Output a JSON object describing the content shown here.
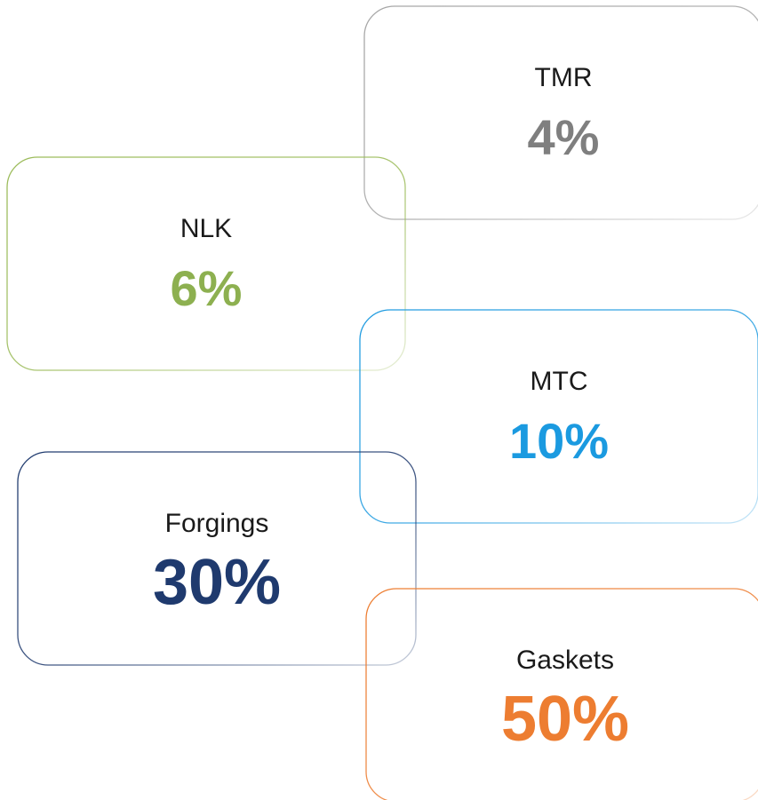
{
  "nodes": [
    {
      "label": "TMR",
      "value": "4%",
      "color": "#a6a6a6",
      "text_color": "#7f7f7f"
    },
    {
      "label": "NLK",
      "value": "6%",
      "color": "#9bbb59",
      "text_color": "#8db050"
    },
    {
      "label": "MTC",
      "value": "10%",
      "color": "#1f9be0",
      "text_color": "#1b9ae0"
    },
    {
      "label": "Forgings",
      "value": "30%",
      "color": "#1f3a6e",
      "text_color": "#1f3a6e"
    },
    {
      "label": "Gaskets",
      "value": "50%",
      "color": "#ed7d31",
      "text_color": "#ed7d31"
    }
  ]
}
